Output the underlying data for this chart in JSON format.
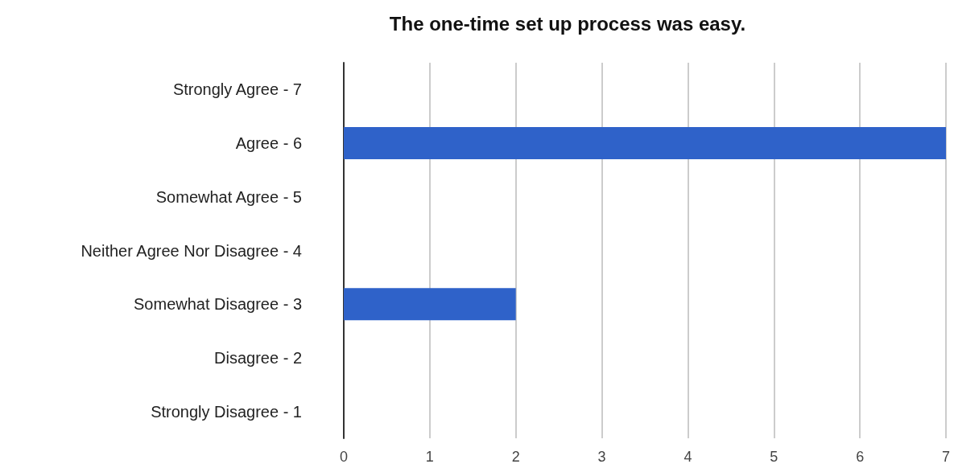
{
  "chart_data": {
    "type": "bar",
    "orientation": "horizontal",
    "title": "The one-time set up process was easy.",
    "categories": [
      "Strongly Agree - 7",
      "Agree - 6",
      "Somewhat Agree - 5",
      "Neither Agree Nor Disagree - 4",
      "Somewhat Disagree - 3",
      "Disagree - 2",
      "Strongly Disagree - 1"
    ],
    "values": [
      0,
      7,
      0,
      0,
      2,
      0,
      0
    ],
    "color": "#2f62c9",
    "xlim": [
      0,
      7
    ],
    "xticks": [
      0,
      1,
      2,
      3,
      4,
      5,
      6,
      7
    ],
    "grid": "x"
  }
}
